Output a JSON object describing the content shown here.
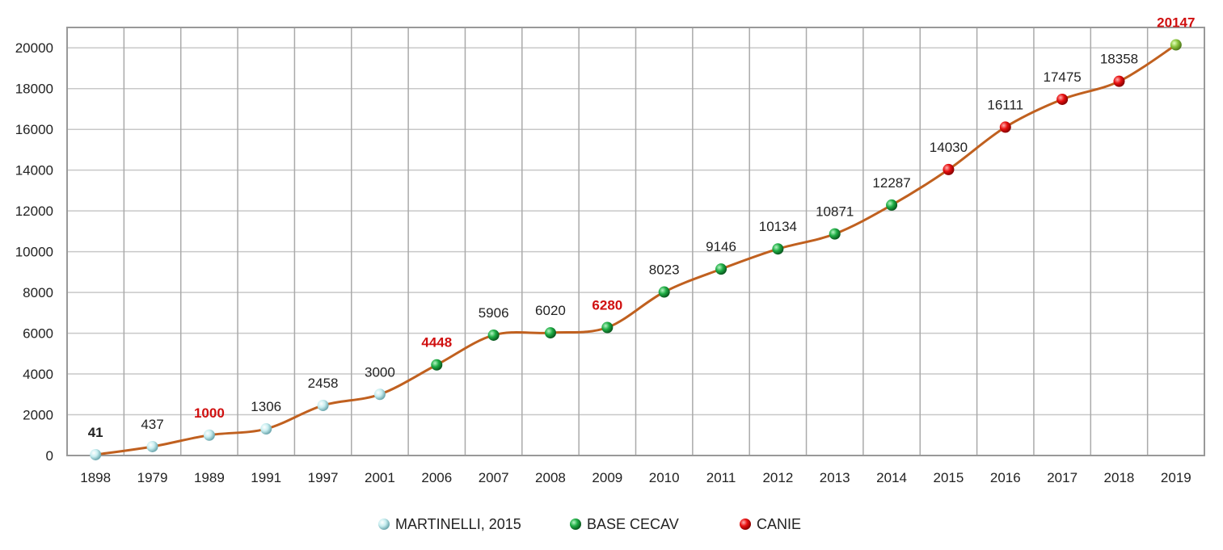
{
  "chart_data": {
    "type": "line",
    "title": "",
    "xlabel": "",
    "ylabel": "",
    "categories": [
      "1898",
      "1979",
      "1989",
      "1991",
      "1997",
      "2001",
      "2006",
      "2007",
      "2008",
      "2009",
      "2010",
      "2011",
      "2012",
      "2013",
      "2014",
      "2015",
      "2016",
      "2017",
      "2018",
      "2019"
    ],
    "values": [
      41,
      437,
      1000,
      1306,
      2458,
      3000,
      4448,
      5906,
      6020,
      6280,
      8023,
      9146,
      10134,
      10871,
      12287,
      14030,
      16111,
      17475,
      18358,
      20147
    ],
    "point_source": [
      "martinelli",
      "martinelli",
      "martinelli",
      "martinelli",
      "martinelli",
      "martinelli",
      "cecav",
      "cecav",
      "cecav",
      "cecav",
      "cecav",
      "cecav",
      "cecav",
      "cecav",
      "cecav",
      "canie",
      "canie",
      "canie",
      "canie",
      "latest"
    ],
    "label_style": [
      "bold-black",
      "normal",
      "bold-red",
      "normal",
      "normal",
      "normal",
      "bold-red",
      "normal",
      "normal",
      "bold-red",
      "normal",
      "normal",
      "normal",
      "normal",
      "normal",
      "normal",
      "normal",
      "normal",
      "normal",
      "bold-red"
    ],
    "ylim": [
      0,
      21000
    ],
    "yticks": [
      0,
      2000,
      4000,
      6000,
      8000,
      10000,
      12000,
      14000,
      16000,
      18000,
      20000
    ],
    "grid": true,
    "smooth": true,
    "line_color": "#c0601f",
    "legend_position": "bottom",
    "legend": [
      {
        "key": "martinelli",
        "label": "MARTINELLI, 2015",
        "color": "#a8dde0"
      },
      {
        "key": "cecav",
        "label": "BASE CECAV",
        "color": "#1e9a3a"
      },
      {
        "key": "canie",
        "label": "CANIE",
        "color": "#e81010"
      }
    ],
    "marker_colors": {
      "martinelli": "#c8eef0",
      "cecav": "#1fae45",
      "canie": "#e81010",
      "latest": "#8cc63f"
    },
    "highlight_red": "#d01010"
  }
}
